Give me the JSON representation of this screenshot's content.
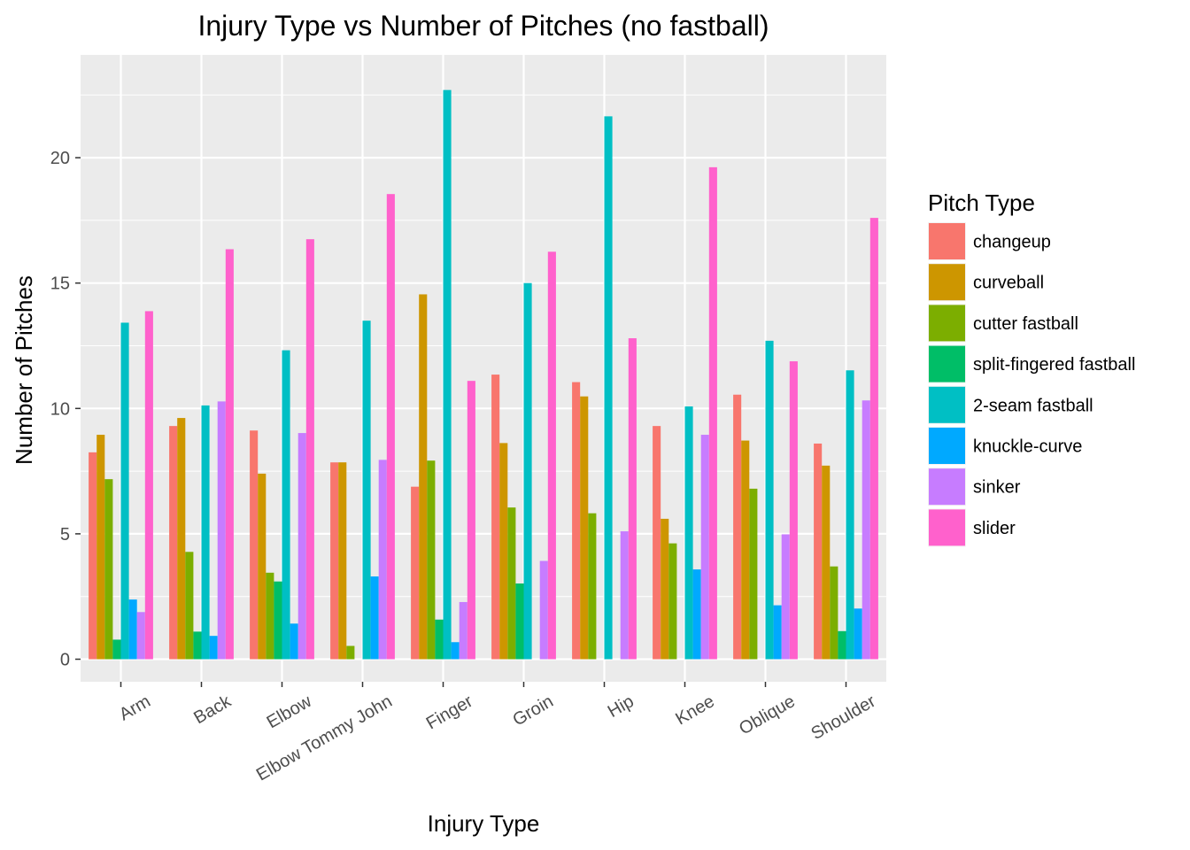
{
  "chart_data": {
    "type": "bar",
    "title": "Injury Type vs Number of Pitches (no fastball)",
    "xlabel": "Injury Type",
    "ylabel": "Number of Pitches",
    "ylim": [
      -0.9,
      24.1
    ],
    "yticks": [
      0,
      5,
      10,
      15,
      20
    ],
    "grid": true,
    "legend_position": "right",
    "legend_title": "Pitch Type",
    "categories": [
      "Arm",
      "Back",
      "Elbow",
      "Elbow Tommy John",
      "Finger",
      "Groin",
      "Hip",
      "Knee",
      "Oblique",
      "Shoulder"
    ],
    "series": [
      {
        "name": "changeup",
        "color": "#F8766D",
        "values": [
          8.25,
          9.3,
          9.12,
          7.85,
          6.88,
          11.35,
          11.05,
          9.3,
          10.55,
          8.6
        ]
      },
      {
        "name": "curveball",
        "color": "#CD9600",
        "values": [
          8.95,
          9.62,
          7.4,
          7.85,
          14.55,
          8.62,
          10.48,
          5.6,
          8.72,
          7.72
        ]
      },
      {
        "name": "cutter fastball",
        "color": "#7CAE00",
        "values": [
          7.18,
          4.28,
          3.45,
          0.53,
          7.92,
          6.05,
          5.82,
          4.62,
          6.8,
          3.7
        ]
      },
      {
        "name": "split-fingered fastball",
        "color": "#00BE67",
        "values": [
          0.78,
          1.1,
          3.1,
          null,
          1.58,
          3.02,
          null,
          null,
          null,
          1.12
        ]
      },
      {
        "name": "2-seam fastball",
        "color": "#00BFC4",
        "values": [
          13.42,
          10.12,
          12.32,
          13.5,
          22.7,
          15.0,
          21.65,
          10.08,
          12.7,
          11.52
        ]
      },
      {
        "name": "knuckle-curve",
        "color": "#00A9FF",
        "values": [
          2.38,
          0.93,
          1.42,
          3.3,
          0.68,
          null,
          null,
          3.58,
          2.15,
          2.02
        ]
      },
      {
        "name": "sinker",
        "color": "#C77CFF",
        "values": [
          1.88,
          10.28,
          9.02,
          7.95,
          2.28,
          3.92,
          5.1,
          8.95,
          4.98,
          10.32
        ]
      },
      {
        "name": "slider",
        "color": "#FF61CC",
        "values": [
          13.88,
          16.35,
          16.75,
          18.55,
          11.1,
          16.25,
          12.8,
          19.62,
          11.88,
          17.6
        ]
      }
    ]
  }
}
